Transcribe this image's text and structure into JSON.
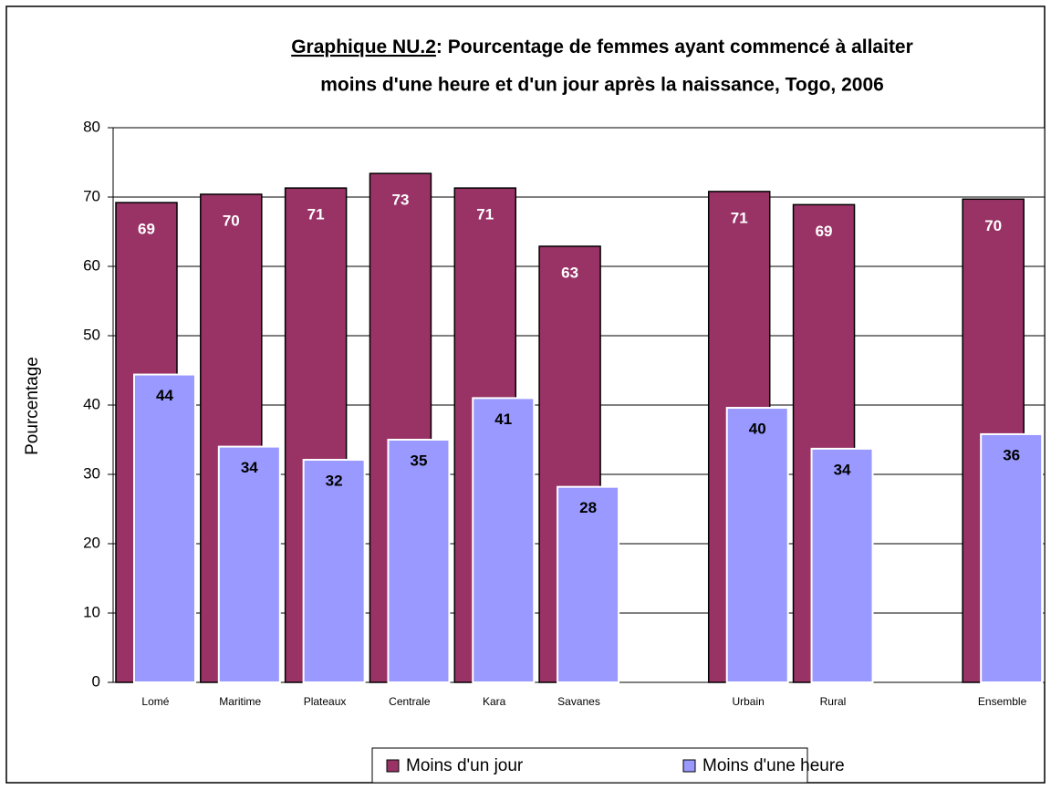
{
  "chart_data": {
    "type": "bar",
    "title_prefix": "Graphique NU.2",
    "title": [
      ": Pourcentage de femmes ayant commencé à allaiter",
      "moins d'une heure et d'un jour après la naissance, Togo, 2006"
    ],
    "ylabel": "Pourcentage",
    "categories": [
      "Lomé",
      "Maritime",
      "Plateaux",
      "Centrale",
      "Kara",
      "Savanes",
      null,
      "Urbain",
      "Rural",
      null,
      "Ensemble"
    ],
    "series": [
      {
        "name": "Moins d'un jour",
        "color": "#993366",
        "values": [
          69.2,
          70.4,
          71.3,
          73.4,
          71.3,
          62.9,
          null,
          70.8,
          68.9,
          null,
          69.7
        ],
        "value_labels": [
          "69",
          "70",
          "71",
          "73",
          "71",
          "63",
          null,
          "71",
          "69",
          null,
          "70"
        ]
      },
      {
        "name": "Moins d'une heure",
        "color": "#9999ff",
        "values": [
          44.4,
          34.0,
          32.1,
          35.0,
          41.0,
          28.2,
          null,
          39.6,
          33.7,
          null,
          35.8
        ],
        "value_labels": [
          "44",
          "34",
          "32",
          "35",
          "41",
          "28",
          null,
          "40",
          "34",
          null,
          "36"
        ]
      }
    ],
    "ylim": [
      0,
      80
    ],
    "yticks": [
      0,
      10,
      20,
      30,
      40,
      50,
      60,
      70,
      80
    ],
    "grid": true,
    "legend": "bottom"
  }
}
